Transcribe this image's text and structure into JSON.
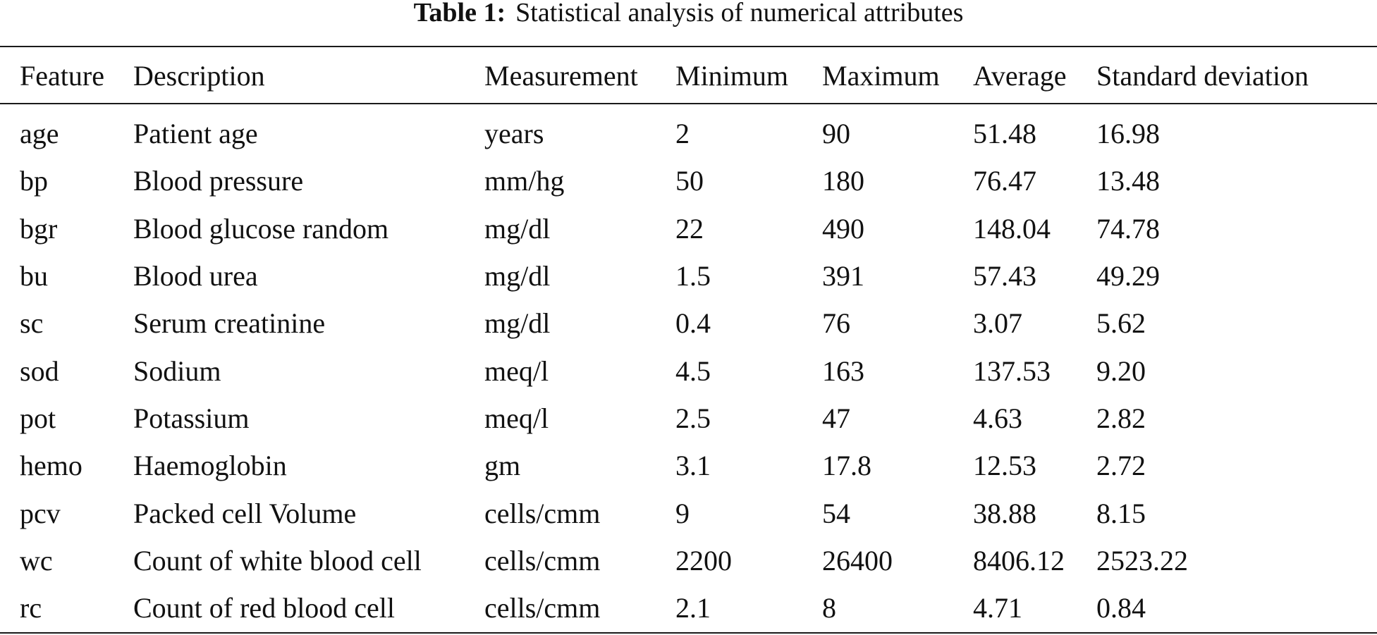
{
  "caption": {
    "label": "Table 1:",
    "text": "Statistical analysis of numerical attributes"
  },
  "table": {
    "headers": [
      "Feature",
      "Description",
      "Measurement",
      "Minimum",
      "Maximum",
      "Average",
      "Standard deviation"
    ],
    "rows": [
      [
        "age",
        "Patient age",
        "years",
        "2",
        "90",
        "51.48",
        "16.98"
      ],
      [
        "bp",
        "Blood pressure",
        "mm/hg",
        "50",
        "180",
        "76.47",
        "13.48"
      ],
      [
        "bgr",
        "Blood glucose random",
        "mg/dl",
        "22",
        "490",
        "148.04",
        "74.78"
      ],
      [
        "bu",
        "Blood urea",
        "mg/dl",
        "1.5",
        "391",
        "57.43",
        "49.29"
      ],
      [
        "sc",
        "Serum creatinine",
        "mg/dl",
        "0.4",
        "76",
        "3.07",
        "5.62"
      ],
      [
        "sod",
        "Sodium",
        "meq/l",
        "4.5",
        "163",
        "137.53",
        "9.20"
      ],
      [
        "pot",
        "Potassium",
        "meq/l",
        "2.5",
        "47",
        "4.63",
        "2.82"
      ],
      [
        "hemo",
        "Haemoglobin",
        "gm",
        "3.1",
        "17.8",
        "12.53",
        "2.72"
      ],
      [
        "pcv",
        "Packed cell Volume",
        "cells/cmm",
        "9",
        "54",
        "38.88",
        "8.15"
      ],
      [
        "wc",
        "Count of white blood cell",
        "cells/cmm",
        "2200",
        "26400",
        "8406.12",
        "2523.22"
      ],
      [
        "rc",
        "Count of red blood cell",
        "cells/cmm",
        "2.1",
        "8",
        "4.71",
        "0.84"
      ]
    ]
  }
}
